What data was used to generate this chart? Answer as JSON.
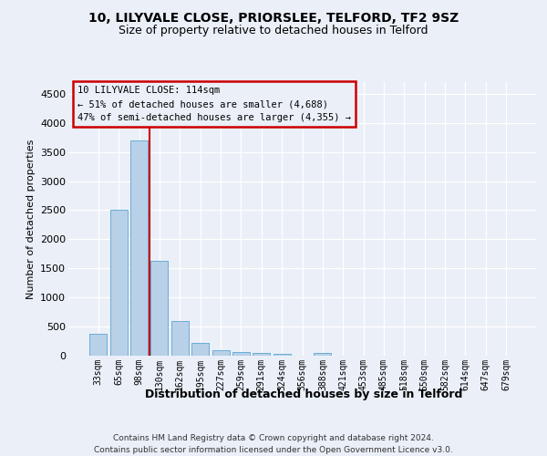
{
  "title": "10, LILYVALE CLOSE, PRIORSLEE, TELFORD, TF2 9SZ",
  "subtitle": "Size of property relative to detached houses in Telford",
  "xlabel": "Distribution of detached houses by size in Telford",
  "ylabel": "Number of detached properties",
  "categories": [
    "33sqm",
    "65sqm",
    "98sqm",
    "130sqm",
    "162sqm",
    "195sqm",
    "227sqm",
    "259sqm",
    "291sqm",
    "324sqm",
    "356sqm",
    "388sqm",
    "421sqm",
    "453sqm",
    "485sqm",
    "518sqm",
    "550sqm",
    "582sqm",
    "614sqm",
    "647sqm",
    "679sqm"
  ],
  "values": [
    370,
    2500,
    3700,
    1630,
    590,
    220,
    100,
    60,
    40,
    30,
    0,
    50,
    0,
    0,
    0,
    0,
    0,
    0,
    0,
    0,
    0
  ],
  "bar_color": "#b8d0e8",
  "bar_edge_color": "#6aadd5",
  "highlight_line_color": "#cc0000",
  "annotation_line1": "10 LILYVALE CLOSE: 114sqm",
  "annotation_line2": "← 51% of detached houses are smaller (4,688)",
  "annotation_line3": "47% of semi-detached houses are larger (4,355) →",
  "ann_box_edge_color": "#cc0000",
  "ylim_max": 4700,
  "yticks": [
    0,
    500,
    1000,
    1500,
    2000,
    2500,
    3000,
    3500,
    4000,
    4500
  ],
  "bg_color": "#eaeff8",
  "grid_color": "#ffffff",
  "footer": "Contains HM Land Registry data © Crown copyright and database right 2024.\nContains public sector information licensed under the Open Government Licence v3.0."
}
